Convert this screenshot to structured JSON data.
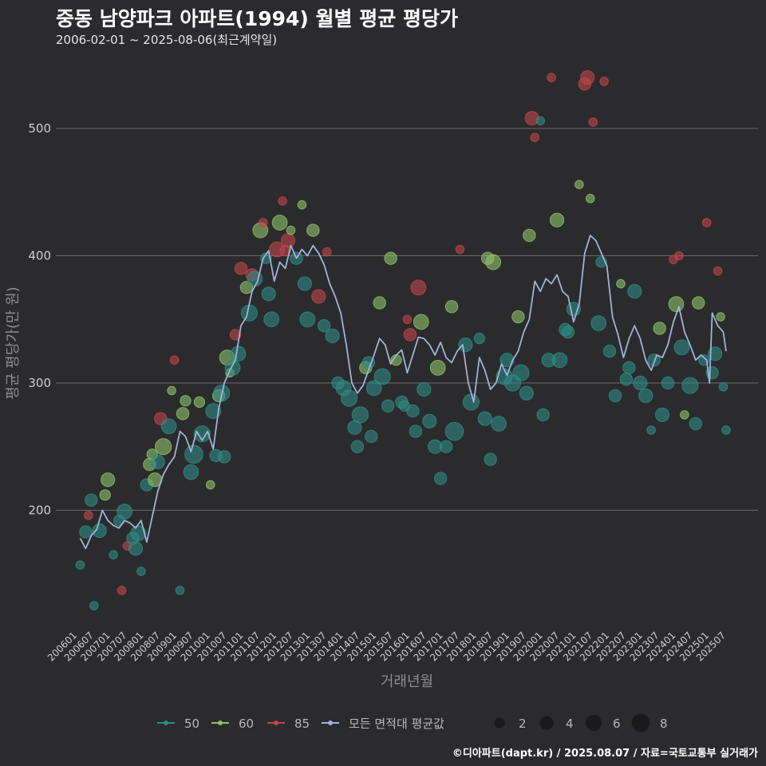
{
  "header": {
    "title": "중동 남양파크 아파트(1994) 월별 평균 평당가",
    "subtitle": "2006-02-01 ~ 2025-08-06(최근계약일)"
  },
  "footer": {
    "source": "©디아파트(dapt.kr) / 2025.08.07 / 자료=국토교통부 실거래가"
  },
  "chart_data": {
    "type": "scatter",
    "xlabel": "거래년월",
    "ylabel": "평균 평당가(만 원)",
    "ylim": [
      105,
      550
    ],
    "yticks": [
      200,
      300,
      400,
      500
    ],
    "grid": true,
    "legend_position": "bottom",
    "x_tick_labels": [
      "200601",
      "200607",
      "200701",
      "200707",
      "200801",
      "200807",
      "200901",
      "200907",
      "201001",
      "201007",
      "201101",
      "201107",
      "201201",
      "201207",
      "201301",
      "201307",
      "201401",
      "201407",
      "201501",
      "201507",
      "201601",
      "201607",
      "201701",
      "201707",
      "201801",
      "201807",
      "201901",
      "201907",
      "202001",
      "202007",
      "202101",
      "202107",
      "202201",
      "202207",
      "202301",
      "202307",
      "202401",
      "202407",
      "202501",
      "202507"
    ],
    "series_colors": {
      "50": "#2e8b84",
      "60": "#8fc26a",
      "85": "#c0454b",
      "avg": "#9fb3d9"
    },
    "legend": {
      "series": [
        {
          "key": "50",
          "label": "50",
          "color": "#2e8b84"
        },
        {
          "key": "60",
          "label": "60",
          "color": "#8fc26a"
        },
        {
          "key": "85",
          "label": "85",
          "color": "#c0454b"
        },
        {
          "key": "avg",
          "label": "모든 면적대 평균값",
          "color": "#9fb3d9"
        }
      ],
      "sizes": [
        {
          "label": "2",
          "value": 2
        },
        {
          "label": "4",
          "value": 4
        },
        {
          "label": "6",
          "value": 6
        },
        {
          "label": "8",
          "value": 8
        }
      ]
    },
    "average_line": [
      [
        "2006-02",
        178
      ],
      [
        "2006-04",
        170
      ],
      [
        "2006-06",
        180
      ],
      [
        "2006-08",
        185
      ],
      [
        "2006-10",
        200
      ],
      [
        "2006-12",
        192
      ],
      [
        "2007-02",
        188
      ],
      [
        "2007-04",
        186
      ],
      [
        "2007-06",
        192
      ],
      [
        "2007-08",
        190
      ],
      [
        "2007-10",
        186
      ],
      [
        "2007-12",
        192
      ],
      [
        "2008-02",
        175
      ],
      [
        "2008-04",
        195
      ],
      [
        "2008-06",
        215
      ],
      [
        "2008-08",
        228
      ],
      [
        "2008-10",
        236
      ],
      [
        "2008-12",
        242
      ],
      [
        "2009-02",
        262
      ],
      [
        "2009-04",
        258
      ],
      [
        "2009-06",
        246
      ],
      [
        "2009-08",
        262
      ],
      [
        "2009-10",
        255
      ],
      [
        "2009-12",
        262
      ],
      [
        "2010-02",
        248
      ],
      [
        "2010-04",
        280
      ],
      [
        "2010-06",
        300
      ],
      [
        "2010-08",
        310
      ],
      [
        "2010-10",
        318
      ],
      [
        "2010-12",
        345
      ],
      [
        "2011-02",
        352
      ],
      [
        "2011-04",
        372
      ],
      [
        "2011-06",
        380
      ],
      [
        "2011-08",
        398
      ],
      [
        "2011-10",
        404
      ],
      [
        "2011-12",
        380
      ],
      [
        "2012-02",
        395
      ],
      [
        "2012-04",
        390
      ],
      [
        "2012-06",
        408
      ],
      [
        "2012-08",
        398
      ],
      [
        "2012-10",
        405
      ],
      [
        "2012-12",
        400
      ],
      [
        "2013-02",
        408
      ],
      [
        "2013-04",
        402
      ],
      [
        "2013-06",
        393
      ],
      [
        "2013-08",
        378
      ],
      [
        "2013-10",
        368
      ],
      [
        "2013-12",
        355
      ],
      [
        "2014-02",
        330
      ],
      [
        "2014-04",
        300
      ],
      [
        "2014-06",
        292
      ],
      [
        "2014-08",
        298
      ],
      [
        "2014-10",
        310
      ],
      [
        "2014-12",
        322
      ],
      [
        "2015-02",
        335
      ],
      [
        "2015-04",
        330
      ],
      [
        "2015-06",
        315
      ],
      [
        "2015-08",
        322
      ],
      [
        "2015-10",
        326
      ],
      [
        "2015-12",
        308
      ],
      [
        "2016-02",
        322
      ],
      [
        "2016-04",
        336
      ],
      [
        "2016-06",
        335
      ],
      [
        "2016-08",
        330
      ],
      [
        "2016-10",
        322
      ],
      [
        "2016-12",
        332
      ],
      [
        "2017-02",
        320
      ],
      [
        "2017-04",
        316
      ],
      [
        "2017-06",
        325
      ],
      [
        "2017-08",
        330
      ],
      [
        "2017-10",
        300
      ],
      [
        "2017-12",
        285
      ],
      [
        "2018-02",
        320
      ],
      [
        "2018-04",
        310
      ],
      [
        "2018-06",
        295
      ],
      [
        "2018-08",
        300
      ],
      [
        "2018-10",
        315
      ],
      [
        "2018-12",
        306
      ],
      [
        "2019-02",
        318
      ],
      [
        "2019-04",
        325
      ],
      [
        "2019-06",
        340
      ],
      [
        "2019-08",
        350
      ],
      [
        "2019-10",
        380
      ],
      [
        "2019-12",
        372
      ],
      [
        "2020-02",
        382
      ],
      [
        "2020-04",
        378
      ],
      [
        "2020-06",
        385
      ],
      [
        "2020-08",
        372
      ],
      [
        "2020-10",
        368
      ],
      [
        "2020-12",
        348
      ],
      [
        "2021-02",
        362
      ],
      [
        "2021-04",
        402
      ],
      [
        "2021-06",
        416
      ],
      [
        "2021-08",
        412
      ],
      [
        "2021-10",
        402
      ],
      [
        "2021-12",
        392
      ],
      [
        "2022-02",
        352
      ],
      [
        "2022-04",
        338
      ],
      [
        "2022-06",
        320
      ],
      [
        "2022-08",
        335
      ],
      [
        "2022-10",
        345
      ],
      [
        "2022-12",
        335
      ],
      [
        "2023-02",
        318
      ],
      [
        "2023-04",
        310
      ],
      [
        "2023-06",
        322
      ],
      [
        "2023-08",
        320
      ],
      [
        "2023-10",
        330
      ],
      [
        "2023-12",
        348
      ],
      [
        "2024-02",
        360
      ],
      [
        "2024-04",
        340
      ],
      [
        "2024-06",
        330
      ],
      [
        "2024-08",
        318
      ],
      [
        "2024-10",
        322
      ],
      [
        "2024-12",
        318
      ],
      [
        "2025-01",
        300
      ],
      [
        "2025-02",
        355
      ],
      [
        "2025-04",
        345
      ],
      [
        "2025-06",
        340
      ],
      [
        "2025-07",
        325
      ]
    ],
    "points": [
      [
        "2006-02",
        157,
        1,
        "50"
      ],
      [
        "2006-04",
        183,
        3,
        "50"
      ],
      [
        "2006-05",
        196,
        1,
        "85"
      ],
      [
        "2006-06",
        208,
        3,
        "50"
      ],
      [
        "2006-07",
        125,
        1,
        "50"
      ],
      [
        "2006-09",
        184,
        4,
        "50"
      ],
      [
        "2006-11",
        212,
        2,
        "60"
      ],
      [
        "2006-12",
        224,
        4,
        "60"
      ],
      [
        "2007-02",
        165,
        1,
        "50"
      ],
      [
        "2007-04",
        192,
        2,
        "50"
      ],
      [
        "2007-05",
        137,
        1,
        "85"
      ],
      [
        "2007-06",
        199,
        5,
        "50"
      ],
      [
        "2007-07",
        172,
        1,
        "85"
      ],
      [
        "2007-09",
        178,
        3,
        "50"
      ],
      [
        "2007-10",
        170,
        4,
        "50"
      ],
      [
        "2007-11",
        182,
        5,
        "50"
      ],
      [
        "2007-12",
        152,
        1,
        "50"
      ],
      [
        "2008-02",
        220,
        3,
        "50"
      ],
      [
        "2008-03",
        236,
        3,
        "60"
      ],
      [
        "2008-04",
        244,
        2,
        "60"
      ],
      [
        "2008-05",
        224,
        4,
        "60"
      ],
      [
        "2008-06",
        238,
        4,
        "50"
      ],
      [
        "2008-07",
        272,
        3,
        "85"
      ],
      [
        "2008-08",
        250,
        6,
        "60"
      ],
      [
        "2008-10",
        266,
        5,
        "50"
      ],
      [
        "2008-11",
        294,
        1,
        "60"
      ],
      [
        "2008-12",
        318,
        1,
        "85"
      ],
      [
        "2009-02",
        137,
        1,
        "50"
      ],
      [
        "2009-03",
        276,
        3,
        "60"
      ],
      [
        "2009-04",
        286,
        2,
        "60"
      ],
      [
        "2009-06",
        230,
        5,
        "50"
      ],
      [
        "2009-07",
        244,
        8,
        "50"
      ],
      [
        "2009-09",
        285,
        2,
        "60"
      ],
      [
        "2009-10",
        260,
        6,
        "50"
      ],
      [
        "2010-01",
        220,
        1,
        "60"
      ],
      [
        "2010-02",
        278,
        5,
        "50"
      ],
      [
        "2010-03",
        243,
        3,
        "50"
      ],
      [
        "2010-04",
        290,
        3,
        "60"
      ],
      [
        "2010-05",
        292,
        6,
        "50"
      ],
      [
        "2010-06",
        242,
        3,
        "50"
      ],
      [
        "2010-07",
        320,
        5,
        "60"
      ],
      [
        "2010-08",
        308,
        1,
        "60"
      ],
      [
        "2010-09",
        312,
        5,
        "50"
      ],
      [
        "2010-10",
        338,
        2,
        "85"
      ],
      [
        "2010-11",
        323,
        5,
        "50"
      ],
      [
        "2010-12",
        390,
        3,
        "85"
      ],
      [
        "2011-02",
        375,
        3,
        "60"
      ],
      [
        "2011-03",
        355,
        6,
        "50"
      ],
      [
        "2011-04",
        385,
        3,
        "85"
      ],
      [
        "2011-05",
        382,
        5,
        "50"
      ],
      [
        "2011-07",
        420,
        5,
        "60"
      ],
      [
        "2011-08",
        426,
        1,
        "85"
      ],
      [
        "2011-09",
        398,
        2,
        "50"
      ],
      [
        "2011-10",
        370,
        4,
        "50"
      ],
      [
        "2011-11",
        350,
        5,
        "50"
      ],
      [
        "2012-01",
        405,
        5,
        "85"
      ],
      [
        "2012-02",
        426,
        5,
        "60"
      ],
      [
        "2012-03",
        443,
        1,
        "85"
      ],
      [
        "2012-04",
        404,
        2,
        "85"
      ],
      [
        "2012-05",
        412,
        4,
        "85"
      ],
      [
        "2012-06",
        420,
        1,
        "60"
      ],
      [
        "2012-08",
        398,
        3,
        "50"
      ],
      [
        "2012-10",
        440,
        1,
        "60"
      ],
      [
        "2012-11",
        378,
        4,
        "50"
      ],
      [
        "2012-12",
        350,
        5,
        "50"
      ],
      [
        "2013-02",
        420,
        3,
        "60"
      ],
      [
        "2013-04",
        368,
        4,
        "85"
      ],
      [
        "2013-06",
        345,
        3,
        "50"
      ],
      [
        "2013-07",
        403,
        1,
        "85"
      ],
      [
        "2013-09",
        337,
        4,
        "50"
      ],
      [
        "2013-11",
        300,
        3,
        "50"
      ],
      [
        "2014-01",
        296,
        5,
        "50"
      ],
      [
        "2014-03",
        288,
        6,
        "50"
      ],
      [
        "2014-05",
        265,
        4,
        "50"
      ],
      [
        "2014-06",
        250,
        3,
        "50"
      ],
      [
        "2014-07",
        275,
        6,
        "50"
      ],
      [
        "2014-09",
        312,
        3,
        "60"
      ],
      [
        "2014-10",
        316,
        3,
        "50"
      ],
      [
        "2014-11",
        258,
        3,
        "50"
      ],
      [
        "2014-12",
        296,
        5,
        "50"
      ],
      [
        "2015-02",
        363,
        3,
        "60"
      ],
      [
        "2015-03",
        305,
        6,
        "50"
      ],
      [
        "2015-05",
        282,
        3,
        "50"
      ],
      [
        "2015-06",
        398,
        3,
        "60"
      ],
      [
        "2015-08",
        318,
        2,
        "60"
      ],
      [
        "2015-10",
        285,
        3,
        "50"
      ],
      [
        "2015-11",
        282,
        2,
        "50"
      ],
      [
        "2015-12",
        350,
        1,
        "85"
      ],
      [
        "2016-01",
        338,
        3,
        "85"
      ],
      [
        "2016-02",
        278,
        3,
        "50"
      ],
      [
        "2016-03",
        262,
        3,
        "50"
      ],
      [
        "2016-04",
        375,
        5,
        "85"
      ],
      [
        "2016-05",
        348,
        5,
        "60"
      ],
      [
        "2016-06",
        295,
        4,
        "50"
      ],
      [
        "2016-08",
        270,
        4,
        "50"
      ],
      [
        "2016-10",
        250,
        4,
        "50"
      ],
      [
        "2016-11",
        312,
        5,
        "60"
      ],
      [
        "2016-12",
        225,
        3,
        "50"
      ],
      [
        "2017-02",
        250,
        3,
        "50"
      ],
      [
        "2017-04",
        360,
        3,
        "60"
      ],
      [
        "2017-05",
        262,
        8,
        "50"
      ],
      [
        "2017-07",
        405,
        1,
        "85"
      ],
      [
        "2017-09",
        330,
        4,
        "50"
      ],
      [
        "2017-11",
        285,
        6,
        "50"
      ],
      [
        "2018-02",
        335,
        2,
        "50"
      ],
      [
        "2018-04",
        272,
        4,
        "50"
      ],
      [
        "2018-05",
        398,
        3,
        "60"
      ],
      [
        "2018-06",
        240,
        3,
        "50"
      ],
      [
        "2018-07",
        395,
        5,
        "60"
      ],
      [
        "2018-09",
        268,
        5,
        "50"
      ],
      [
        "2018-11",
        305,
        6,
        "50"
      ],
      [
        "2018-12",
        318,
        4,
        "50"
      ],
      [
        "2019-02",
        300,
        6,
        "50"
      ],
      [
        "2019-04",
        352,
        3,
        "60"
      ],
      [
        "2019-05",
        308,
        6,
        "50"
      ],
      [
        "2019-07",
        292,
        4,
        "50"
      ],
      [
        "2019-08",
        416,
        3,
        "60"
      ],
      [
        "2019-09",
        508,
        4,
        "85"
      ],
      [
        "2019-10",
        493,
        1,
        "85"
      ],
      [
        "2019-12",
        506,
        1,
        "50"
      ],
      [
        "2020-01",
        275,
        3,
        "50"
      ],
      [
        "2020-03",
        318,
        4,
        "50"
      ],
      [
        "2020-04",
        540,
        1,
        "85"
      ],
      [
        "2020-06",
        428,
        4,
        "60"
      ],
      [
        "2020-07",
        318,
        5,
        "50"
      ],
      [
        "2020-09",
        342,
        3,
        "50"
      ],
      [
        "2020-10",
        340,
        3,
        "50"
      ],
      [
        "2020-12",
        358,
        4,
        "50"
      ],
      [
        "2021-02",
        456,
        1,
        "60"
      ],
      [
        "2021-04",
        535,
        3,
        "85"
      ],
      [
        "2021-05",
        540,
        4,
        "85"
      ],
      [
        "2021-06",
        445,
        1,
        "60"
      ],
      [
        "2021-07",
        505,
        1,
        "85"
      ],
      [
        "2021-09",
        347,
        5,
        "50"
      ],
      [
        "2021-10",
        395,
        2,
        "50"
      ],
      [
        "2021-11",
        537,
        1,
        "85"
      ],
      [
        "2022-01",
        325,
        3,
        "50"
      ],
      [
        "2022-03",
        290,
        3,
        "50"
      ],
      [
        "2022-05",
        378,
        1,
        "60"
      ],
      [
        "2022-07",
        303,
        3,
        "50"
      ],
      [
        "2022-08",
        312,
        3,
        "50"
      ],
      [
        "2022-10",
        372,
        4,
        "50"
      ],
      [
        "2022-12",
        300,
        4,
        "50"
      ],
      [
        "2023-02",
        290,
        4,
        "50"
      ],
      [
        "2023-04",
        263,
        1,
        "50"
      ],
      [
        "2023-05",
        318,
        3,
        "50"
      ],
      [
        "2023-07",
        343,
        3,
        "60"
      ],
      [
        "2023-08",
        275,
        4,
        "50"
      ],
      [
        "2023-10",
        300,
        3,
        "50"
      ],
      [
        "2023-12",
        397,
        1,
        "85"
      ],
      [
        "2024-01",
        362,
        5,
        "60"
      ],
      [
        "2024-02",
        400,
        1,
        "85"
      ],
      [
        "2024-03",
        328,
        5,
        "50"
      ],
      [
        "2024-04",
        275,
        1,
        "60"
      ],
      [
        "2024-06",
        298,
        6,
        "50"
      ],
      [
        "2024-08",
        268,
        3,
        "50"
      ],
      [
        "2024-09",
        363,
        3,
        "60"
      ],
      [
        "2024-11",
        318,
        2,
        "50"
      ],
      [
        "2024-12",
        426,
        1,
        "85"
      ],
      [
        "2025-02",
        308,
        3,
        "50"
      ],
      [
        "2025-03",
        323,
        4,
        "50"
      ],
      [
        "2025-04",
        388,
        1,
        "85"
      ],
      [
        "2025-05",
        352,
        1,
        "60"
      ],
      [
        "2025-06",
        297,
        1,
        "50"
      ],
      [
        "2025-07",
        263,
        1,
        "50"
      ]
    ]
  }
}
